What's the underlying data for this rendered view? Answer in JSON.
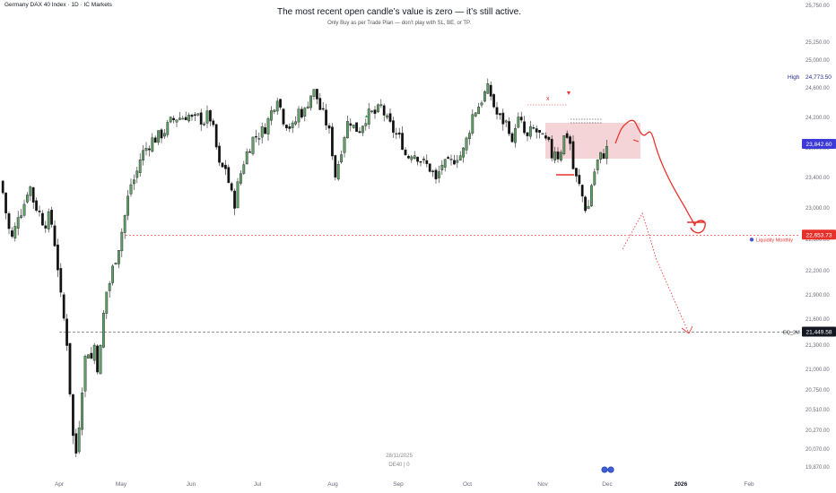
{
  "header": {
    "symbol": "Germany DAX 40 Index · 1D · IC Markets",
    "headline": "The most recent open candle’s value is zero — it’s still active.",
    "subline": "Only Buy as per Trade Plan — don’t play with SL, BE, or TP."
  },
  "footer": {
    "date": "28/11/2025",
    "ticker": "DE40 | 0"
  },
  "chart_data": {
    "type": "candlestick",
    "ylim": [
      19800,
      25800
    ],
    "y_ticks": [
      "25,750.00",
      "25,250.00",
      "25,000.00",
      "24,600.00",
      "24,200.00",
      "23,800.00",
      "23,400.00",
      "23,000.00",
      "22,600.00",
      "22,200.00",
      "21,900.00",
      "21,600.00",
      "21,300.00",
      "21,000.00",
      "20,750.00",
      "20,510.00",
      "20,270.00",
      "20,070.00",
      "19,870.00"
    ],
    "x_ticks": [
      "Apr",
      "May",
      "Jun",
      "Jul",
      "Aug",
      "Sep",
      "Oct",
      "Nov",
      "Dec",
      "2026",
      "Feb"
    ],
    "price_tags": [
      {
        "label": "High",
        "value": "24,773.50",
        "color": "#ffffff",
        "text": "#2a2e8f"
      },
      {
        "label": "",
        "value": "23,842.60",
        "color": "#3b39d8",
        "text": "#ffffff"
      },
      {
        "label": "Liquidity Monthly",
        "value": "22,653.73",
        "color": "#e8302a",
        "text": "#ffffff"
      },
      {
        "label": "EQ_2M",
        "value": "21,449.58",
        "color": "#131722",
        "text": "#ffffff"
      }
    ],
    "levels": [
      {
        "name": "Liquidity Monthly",
        "value": 22653.73,
        "color": "#e8302a"
      },
      {
        "name": "EQ_2M",
        "value": 21449.58,
        "color": "#555555"
      }
    ],
    "markers": [
      "x"
    ],
    "colors": {
      "up": "#4f8a56",
      "down": "#111111",
      "drawing": "#e8302a",
      "zone": "#f2c6c9"
    }
  }
}
